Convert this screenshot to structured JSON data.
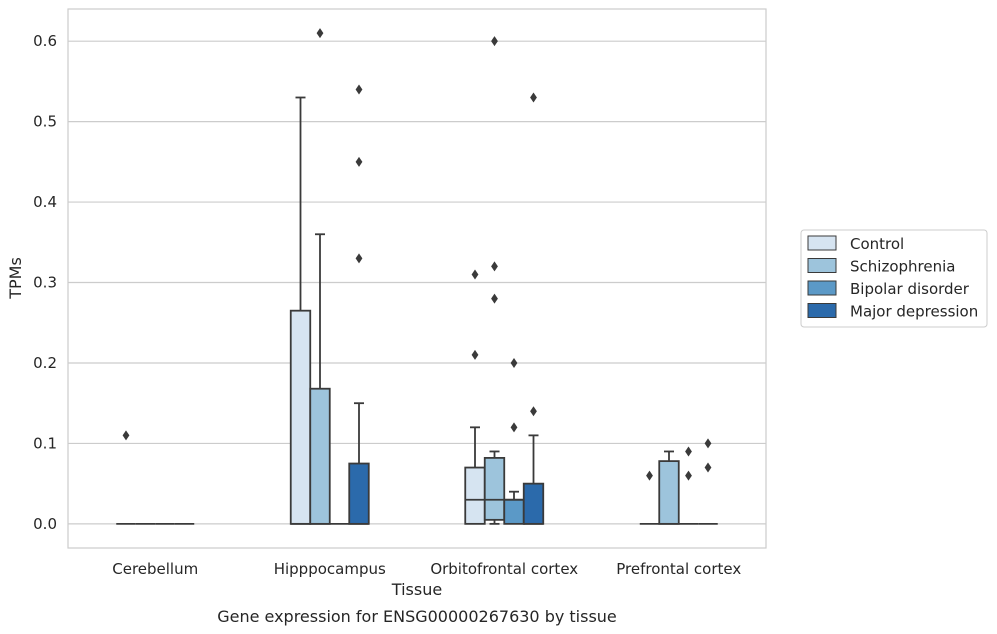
{
  "chart_data": {
    "type": "box",
    "title": "Gene expression for ENSG00000267630 by tissue",
    "xlabel": "Tissue",
    "ylabel": "TPMs",
    "ylim": [
      -0.03,
      0.64
    ],
    "yticks": [
      "0.0",
      "0.1",
      "0.2",
      "0.3",
      "0.4",
      "0.5",
      "0.6"
    ],
    "grid": true,
    "legend_position": "right",
    "categories": [
      "Cerebellum",
      "Hipppocampus",
      "Orbitofrontal cortex",
      "Prefrontal cortex"
    ],
    "series": [
      {
        "name": "Control",
        "color": "#d6e4f1",
        "boxes": [
          {
            "q1": 0,
            "median": 0,
            "q3": 0,
            "whisker_low": 0,
            "whisker_high": 0,
            "outliers": [
              0.11
            ]
          },
          {
            "q1": 0,
            "median": 0,
            "q3": 0.265,
            "whisker_low": 0,
            "whisker_high": 0.53,
            "outliers": []
          },
          {
            "q1": 0,
            "median": 0.03,
            "q3": 0.07,
            "whisker_low": 0,
            "whisker_high": 0.12,
            "outliers": [
              0.21,
              0.31
            ]
          },
          {
            "q1": 0,
            "median": 0,
            "q3": 0,
            "whisker_low": 0,
            "whisker_high": 0,
            "outliers": [
              0.06
            ]
          }
        ]
      },
      {
        "name": "Schizophrenia",
        "color": "#9dc4dc",
        "boxes": [
          {
            "q1": 0,
            "median": 0,
            "q3": 0,
            "whisker_low": 0,
            "whisker_high": 0,
            "outliers": []
          },
          {
            "q1": 0,
            "median": 0,
            "q3": 0.168,
            "whisker_low": 0,
            "whisker_high": 0.36,
            "outliers": [
              0.61
            ]
          },
          {
            "q1": 0.005,
            "median": 0.03,
            "q3": 0.082,
            "whisker_low": 0,
            "whisker_high": 0.09,
            "outliers": [
              0.28,
              0.32,
              0.6
            ]
          },
          {
            "q1": 0,
            "median": 0,
            "q3": 0.078,
            "whisker_low": 0,
            "whisker_high": 0.09,
            "outliers": []
          }
        ]
      },
      {
        "name": "Bipolar disorder",
        "color": "#5b99c7",
        "boxes": [
          {
            "q1": 0,
            "median": 0,
            "q3": 0,
            "whisker_low": 0,
            "whisker_high": 0,
            "outliers": []
          },
          {
            "q1": 0,
            "median": 0,
            "q3": 0,
            "whisker_low": 0,
            "whisker_high": 0,
            "outliers": []
          },
          {
            "q1": 0,
            "median": 0.03,
            "q3": 0.03,
            "whisker_low": 0,
            "whisker_high": 0.04,
            "outliers": [
              0.12,
              0.2
            ]
          },
          {
            "q1": 0,
            "median": 0,
            "q3": 0,
            "whisker_low": 0,
            "whisker_high": 0,
            "outliers": [
              0.06,
              0.09
            ]
          }
        ]
      },
      {
        "name": "Major depression",
        "color": "#2b6aab",
        "boxes": [
          {
            "q1": 0,
            "median": 0,
            "q3": 0,
            "whisker_low": 0,
            "whisker_high": 0,
            "outliers": []
          },
          {
            "q1": 0,
            "median": 0,
            "q3": 0.075,
            "whisker_low": 0,
            "whisker_high": 0.15,
            "outliers": [
              0.33,
              0.45,
              0.54
            ]
          },
          {
            "q1": 0,
            "median": 0,
            "q3": 0.05,
            "whisker_low": 0,
            "whisker_high": 0.11,
            "outliers": [
              0.14,
              0.53
            ]
          },
          {
            "q1": 0,
            "median": 0,
            "q3": 0,
            "whisker_low": 0,
            "whisker_high": 0,
            "outliers": [
              0.07,
              0.1
            ]
          }
        ]
      }
    ]
  }
}
